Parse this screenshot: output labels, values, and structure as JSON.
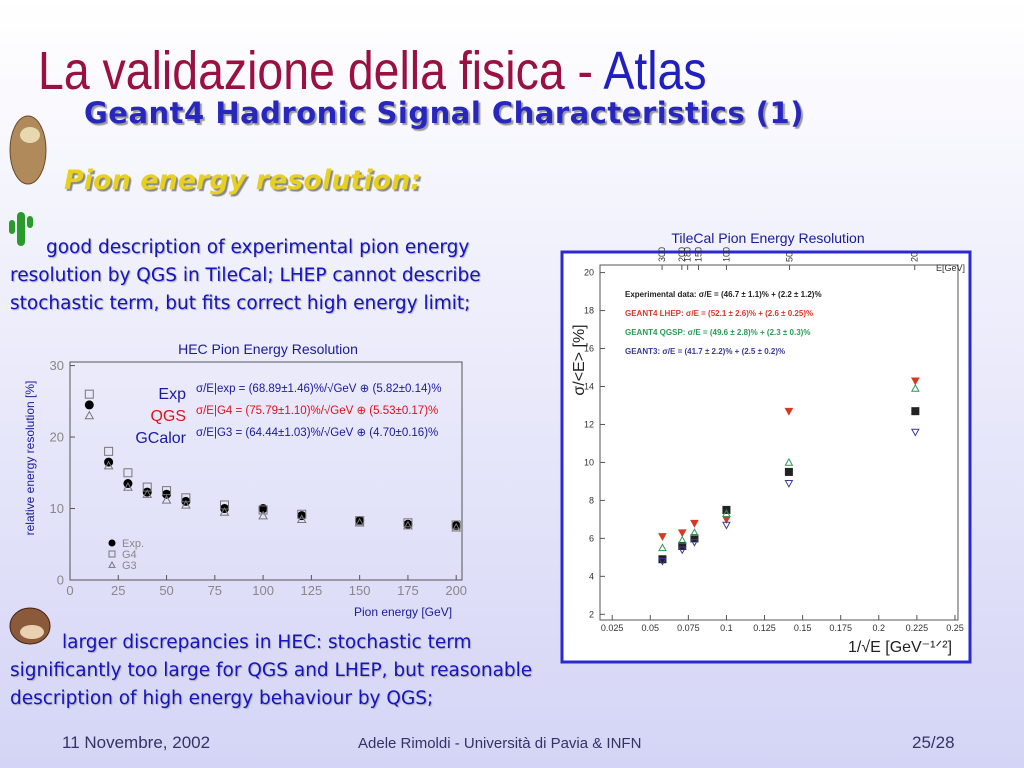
{
  "title": "La validazione della fisica - ",
  "title_highlight": "Atlas",
  "subtitle": "Geant4 Hadronic Signal Characteristics (1)",
  "section": "Pion energy resolution:",
  "bullets": [
    "good description of experimental pion energy resolution by QGS in TileCal; LHEP cannot describe stochastic term, but fits correct high energy limit;",
    "larger discrepancies in HEC: stochastic term significantly too large for QGS and LHEP, but reasonable description of high energy behaviour by QGS;"
  ],
  "charts": [
    {
      "type": "scatter",
      "title": "HEC Pion Energy Resolution",
      "x_label": "Pion energy [GeV]",
      "y_label": "relative energy resolution [%]",
      "xlim": [
        0,
        203
      ],
      "ylim": [
        0,
        30.5
      ],
      "xticks": [
        0,
        25,
        50,
        75,
        100,
        125,
        150,
        175,
        200
      ],
      "yticks": [
        0,
        10,
        20,
        30
      ],
      "x": [
        10,
        20,
        30,
        40,
        50,
        60,
        80,
        100,
        120,
        150,
        175,
        200
      ],
      "series": [
        {
          "name": "Exp.",
          "color": "#000000",
          "marker": "circle",
          "values": [
            24.5,
            16.5,
            13.5,
            12.3,
            12,
            11,
            10,
            10,
            9,
            8.3,
            7.8,
            7.6
          ]
        },
        {
          "name": "G4",
          "color": "#777777",
          "marker": "square",
          "values": [
            26,
            18,
            15,
            13,
            12.5,
            11.5,
            10.5,
            9.8,
            9.2,
            8.3,
            8,
            7.7
          ]
        },
        {
          "name": "G3",
          "color": "#777777",
          "marker": "triangle",
          "values": [
            23,
            16,
            13,
            12,
            11.2,
            10.5,
            9.5,
            9,
            8.5,
            8,
            7.6,
            7.3
          ]
        }
      ],
      "formulas": [
        {
          "name": "Exp",
          "color": "#1a1aa0",
          "text": "σ/E|exp = (68.89±1.46)%/√GeV ⊕ (5.82±0.14)%"
        },
        {
          "name": "QGS",
          "color": "#e0101a",
          "text": "σ/E|G4 = (75.79±1.10)%/√GeV ⊕ (5.53±0.17)%"
        },
        {
          "name": "GCalor",
          "color": "#1a1aa0",
          "text": "σ/E|G3 = (64.44±1.03)%/√GeV ⊕ (4.70±0.16)%"
        }
      ]
    },
    {
      "type": "scatter",
      "title": "TileCal Pion Energy Resolution",
      "x_label": "1/√E [GeV⁻¹ᐟ²]",
      "y_label": "σ/<E> [%]",
      "top_label": "E[GeV]",
      "xlim": [
        0.017,
        0.252
      ],
      "ylim": [
        1.7,
        20.4
      ],
      "xticks": [
        0.025,
        0.05,
        0.075,
        0.1,
        0.125,
        0.15,
        0.175,
        0.2,
        0.225,
        0.25
      ],
      "yticks": [
        2,
        4,
        6,
        8,
        10,
        12,
        14,
        16,
        18,
        20
      ],
      "top_ticks": [
        300,
        200,
        180,
        150,
        100,
        50,
        20
      ],
      "x": [
        0.058,
        0.071,
        0.079,
        0.1,
        0.141,
        0.224
      ],
      "series": [
        {
          "name": "Experimental data: σ/E = (46.7 ± 1.1)% + (2.2 ± 1.2)%",
          "color": "#222222",
          "marker": "square",
          "values": [
            4.9,
            5.6,
            6.0,
            7.5,
            9.5,
            12.7
          ]
        },
        {
          "name": "GEANT4 LHEP: σ/E = (52.1 ± 2.6)% + (2.6 ± 0.25)%",
          "color": "#d63a26",
          "marker": "tridown",
          "values": [
            6.1,
            6.3,
            6.8,
            7.0,
            12.7,
            14.3
          ]
        },
        {
          "name": "GEANT4 QGSP: σ/E = (49.6 ± 2.8)% + (2.3 ± 0.3)%",
          "color": "#2a9a55",
          "marker": "triup",
          "values": [
            5.5,
            5.9,
            6.3,
            7.3,
            10,
            13.9
          ]
        },
        {
          "name": "GEANT3: σ/E = (41.7 ± 2.2)% + (2.5 ± 0.2)%",
          "color": "#3a3a9a",
          "marker": "tridown",
          "values": [
            4.8,
            5.4,
            5.8,
            6.7,
            8.9,
            11.6
          ]
        }
      ]
    }
  ],
  "footer": {
    "date": "11 Novembre, 2002",
    "author": "Adele Rimoldi  - Università di Pavia & INFN",
    "page": "25/28"
  }
}
